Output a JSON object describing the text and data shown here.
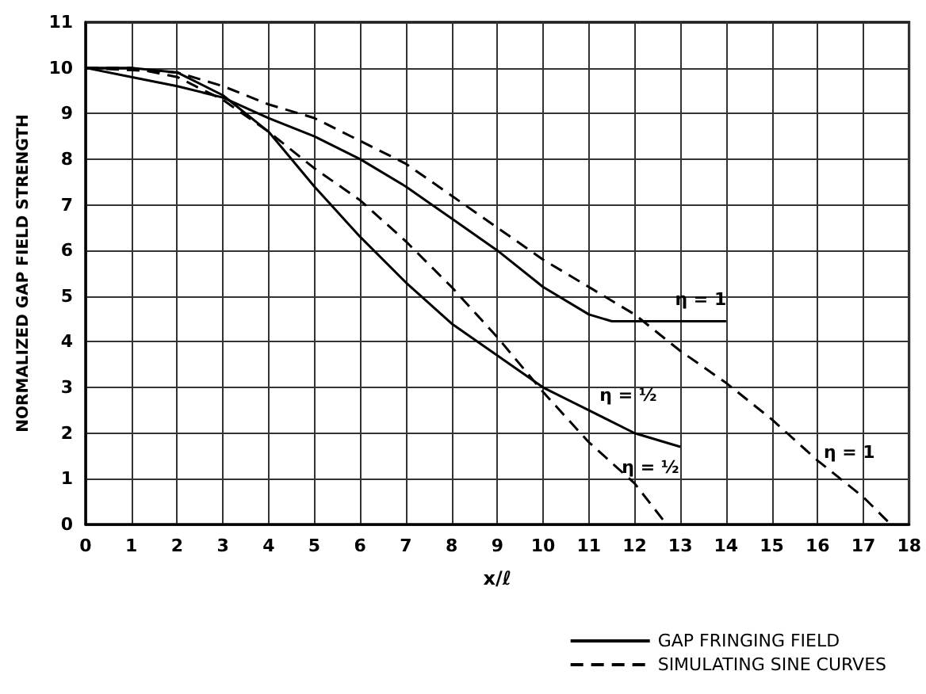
{
  "chart_data": {
    "type": "line",
    "xlabel": "x/ℓ",
    "ylabel": "NORMALIZED GAP FIELD STRENGTH",
    "series": [
      {
        "name": "GAP FRINGING FIELD",
        "color": "#000000",
        "line_style": "solid",
        "x": [
          0,
          1,
          2,
          3,
          4,
          5,
          6,
          7,
          8,
          9,
          10,
          11,
          11.5,
          12,
          14
        ],
        "values": [
          10,
          9.8,
          9.6,
          9.35,
          8.9,
          8.5,
          8.0,
          7.4,
          6.7,
          6.0,
          5.2,
          4.6,
          4.45,
          4.45,
          4.45
        ]
      },
      {
        "color": "#000000",
        "line_style": "solid",
        "x": [
          0,
          1,
          2,
          3,
          4,
          5,
          6,
          7,
          8,
          9,
          10,
          11,
          12,
          13
        ],
        "values": [
          10,
          10,
          9.9,
          9.4,
          8.6,
          7.4,
          6.3,
          5.3,
          4.4,
          3.7,
          3.0,
          2.5,
          2.0,
          1.7
        ]
      },
      {
        "name": "SIMULATING SINE CURVES",
        "color": "#000000",
        "line_style": "dashed",
        "x": [
          0,
          2,
          3,
          4,
          5,
          6,
          7,
          8,
          9,
          10,
          11,
          12,
          13,
          14,
          15,
          16,
          17,
          17.6
        ],
        "values": [
          10,
          9.9,
          9.6,
          9.2,
          8.9,
          8.4,
          7.9,
          7.2,
          6.5,
          5.8,
          5.2,
          4.6,
          3.8,
          3.1,
          2.3,
          1.4,
          0.6,
          0
        ]
      },
      {
        "color": "#000000",
        "line_style": "dashed",
        "x": [
          0,
          1,
          2,
          3,
          4,
          5,
          6,
          7,
          8,
          9,
          10,
          11,
          12,
          12.7
        ],
        "values": [
          10,
          10,
          9.8,
          9.3,
          8.6,
          7.8,
          7.1,
          6.2,
          5.2,
          4.1,
          2.9,
          1.8,
          0.9,
          0
        ]
      }
    ],
    "annotations": [
      {
        "text": "η = 1",
        "x": 14,
        "y": 4.45
      },
      {
        "text": "η = ½",
        "x": 12,
        "y": 2.0
      },
      {
        "text": "η = ½",
        "x": 12,
        "y": 0.9
      },
      {
        "text": "η = 1",
        "x": 16,
        "y": 1.4
      }
    ],
    "xlim": [
      0,
      18
    ],
    "xticks": [
      0,
      1,
      2,
      3,
      4,
      5,
      6,
      7,
      8,
      9,
      10,
      11,
      12,
      13,
      14,
      15,
      16,
      17,
      18
    ],
    "ylim": [
      0,
      11
    ],
    "yticks": [
      0,
      1,
      2,
      3,
      4,
      5,
      6,
      7,
      8,
      9,
      10,
      11
    ],
    "grid": true,
    "legend": "bottom right",
    "marker": "none"
  }
}
